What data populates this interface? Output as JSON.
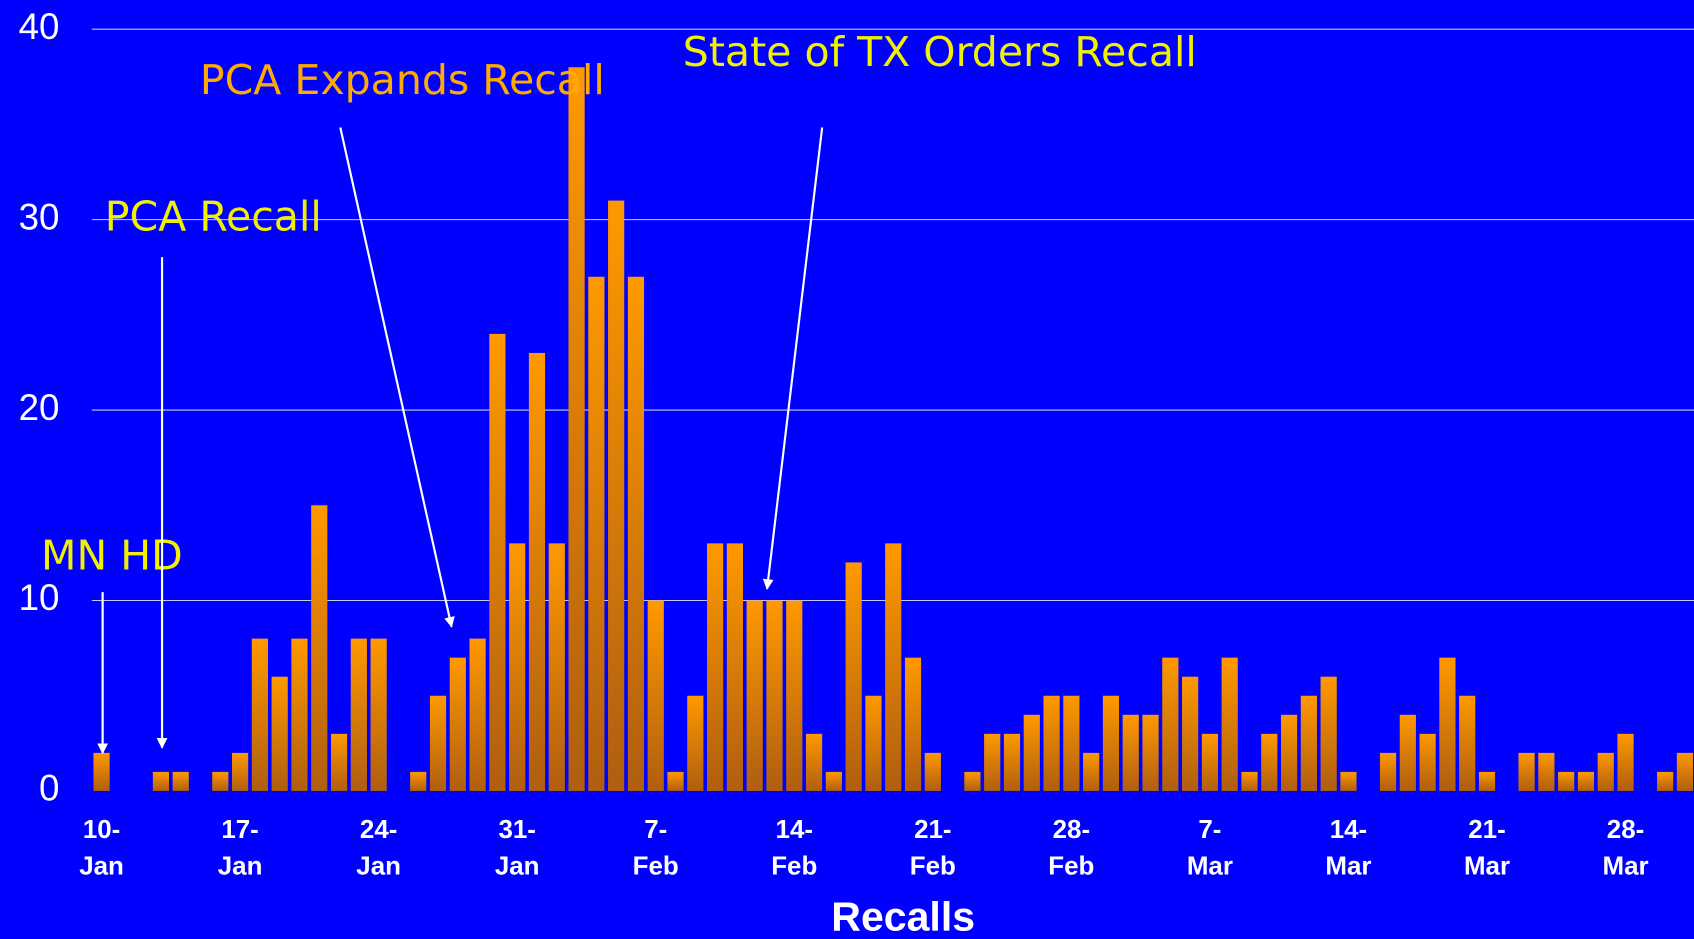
{
  "chart_data": {
    "type": "bar",
    "x_label": "Recalls",
    "categories": [
      "10-Jan",
      null,
      null,
      null,
      null,
      null,
      null,
      "17-Jan",
      null,
      null,
      null,
      null,
      null,
      null,
      "24-Jan",
      null,
      null,
      null,
      null,
      null,
      null,
      "31-Jan",
      null,
      null,
      null,
      null,
      null,
      null,
      "7-Feb",
      null,
      null,
      null,
      null,
      null,
      null,
      "14-Feb",
      null,
      null,
      null,
      null,
      null,
      null,
      "21-Feb",
      null,
      null,
      null,
      null,
      null,
      null,
      "28-Feb",
      null,
      null,
      null,
      null,
      null,
      null,
      "7-Mar",
      null,
      null,
      null,
      null,
      null,
      null,
      "14-Mar",
      null,
      null,
      null,
      null,
      null,
      null,
      "21-Mar",
      null,
      null,
      null,
      null,
      null,
      null,
      "28-Mar",
      null,
      null,
      null
    ],
    "values": [
      2,
      0,
      0,
      1,
      1,
      0,
      1,
      2,
      8,
      6,
      8,
      15,
      3,
      8,
      8,
      0,
      1,
      5,
      7,
      8,
      24,
      13,
      23,
      13,
      38,
      27,
      31,
      27,
      10,
      1,
      5,
      13,
      13,
      10,
      10,
      10,
      3,
      1,
      12,
      5,
      13,
      7,
      2,
      0,
      1,
      3,
      3,
      4,
      5,
      5,
      2,
      5,
      4,
      4,
      7,
      6,
      3,
      7,
      1,
      3,
      4,
      5,
      6,
      1,
      0,
      2,
      4,
      3,
      7,
      5,
      1,
      0,
      2,
      2,
      1,
      1,
      2,
      3,
      0,
      1,
      2
    ],
    "color": "#ff9900",
    "ylim": [
      0,
      40
    ],
    "yticks": [
      0,
      10,
      20,
      30,
      40
    ],
    "grid": true,
    "annotations": [
      {
        "text": "MN HD",
        "color": "#f0f000"
      },
      {
        "text": "PCA Recall",
        "color": "#f0f000"
      },
      {
        "text": "PCA Expands Recall",
        "color": "#ffaa00"
      },
      {
        "text": "State of TX Orders Recall",
        "color": "#f0f000"
      }
    ]
  }
}
